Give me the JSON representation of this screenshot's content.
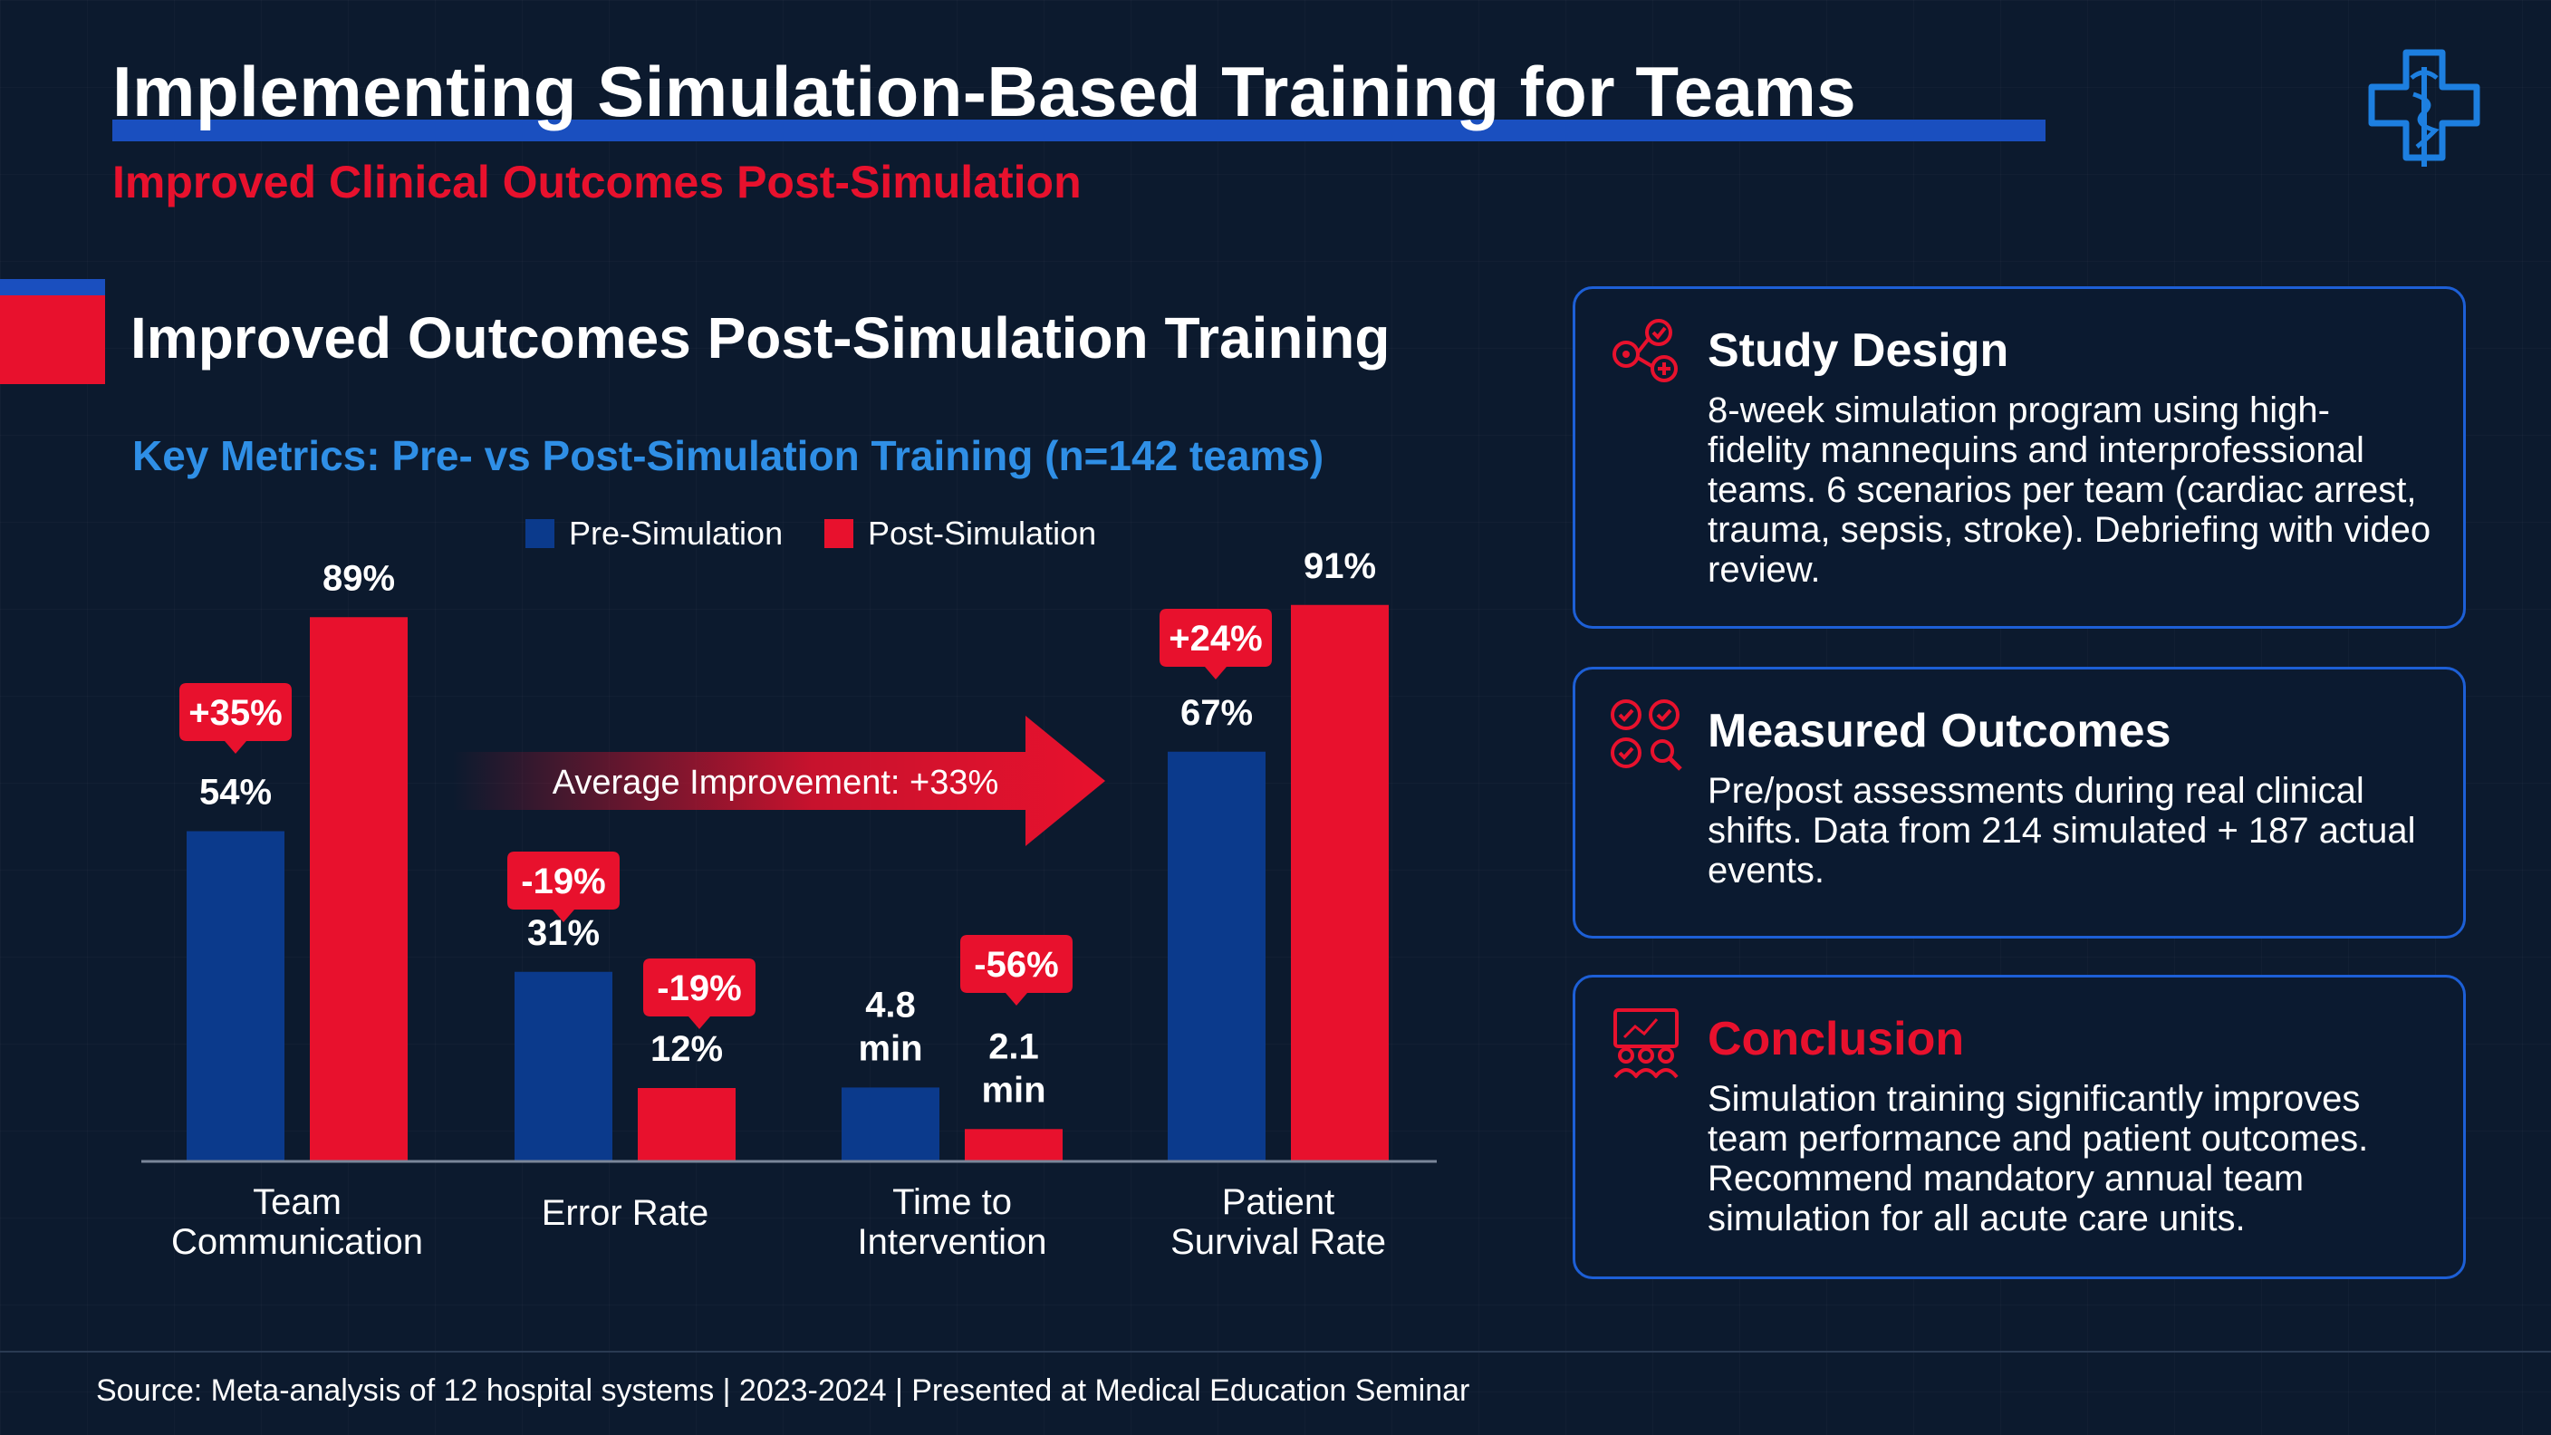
{
  "header": {
    "title": "Implementing Simulation-Based Training for Teams",
    "subtitle": "Improved Clinical Outcomes Post-Simulation",
    "logo_icon": "medical-cross-caduceus-icon"
  },
  "section": {
    "title": "Improved Outcomes Post-Simulation Training",
    "chart_subtitle": "Key Metrics: Pre- vs Post-Simulation Training (n=142 teams)"
  },
  "colors": {
    "pre": "#0b3a8c",
    "post": "#e8112d",
    "accent_blue": "#2f8fe6",
    "panel_border": "#1d5fd6"
  },
  "chart_data": {
    "type": "bar",
    "title": "Key Metrics: Pre- vs Post-Simulation Training (n=142 teams)",
    "categories": [
      "Team Communication",
      "Error Rate",
      "Time to Intervention",
      "Patient Survival Rate"
    ],
    "category_lines": [
      [
        "Team",
        "Communication"
      ],
      [
        "Error Rate"
      ],
      [
        "Time to",
        "Intervention"
      ],
      [
        "Patient",
        "Survival Rate"
      ]
    ],
    "series": [
      {
        "name": "Pre-Simulation",
        "values": [
          54,
          31,
          4.8,
          67
        ],
        "labels": [
          "54%",
          "31%",
          "4.8 min",
          "67%"
        ]
      },
      {
        "name": "Post-Simulation",
        "values": [
          89,
          12,
          2.1,
          91
        ],
        "labels": [
          "89%",
          "12%",
          "2.1 min",
          "91%"
        ]
      }
    ],
    "change_badges": [
      {
        "category": "Team Communication",
        "label": "+35%"
      },
      {
        "category": "Error Rate",
        "label": "-19%"
      },
      {
        "category": "Error Rate",
        "label": "-19%"
      },
      {
        "category": "Time to Intervention",
        "label": "-56%"
      },
      {
        "category": "Patient Survival Rate",
        "label": "+24%"
      }
    ],
    "annotation": "Average Improvement: +33%",
    "legend": [
      "Pre-Simulation",
      "Post-Simulation"
    ],
    "legend_position": "top",
    "grid": false
  },
  "panels": [
    {
      "icon": "process-network-icon",
      "title": "Study Design",
      "body": "8-week simulation program using high-fidelity mannequins and interprofessional teams. 6 scenarios per team (cardiac arrest, trauma, sepsis, stroke). Debriefing with video review."
    },
    {
      "icon": "checklist-circles-icon",
      "title": "Measured Outcomes",
      "body": "Pre/post assessments during real clinical shifts. Data from 214 simulated + 187 actual events."
    },
    {
      "icon": "team-presentation-icon",
      "title": "Conclusion",
      "body": "Simulation training significantly improves team performance and patient outcomes. Recommend mandatory annual team simulation for all acute care units."
    }
  ],
  "footer": {
    "source": "Source: Meta-analysis of 12 hospital systems | 2023-2024 | Presented at Medical Education Seminar"
  }
}
